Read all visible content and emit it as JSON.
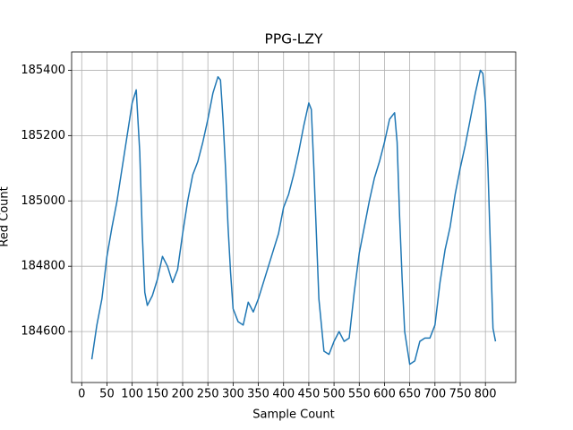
{
  "chart_data": {
    "type": "line",
    "title": "PPG-LZY",
    "x_label": "Sample Count",
    "y_label": "Red Count",
    "x": [
      20,
      30,
      40,
      50,
      60,
      70,
      80,
      90,
      100,
      108,
      115,
      120,
      125,
      130,
      140,
      150,
      160,
      170,
      180,
      190,
      200,
      210,
      220,
      230,
      240,
      250,
      260,
      270,
      275,
      280,
      285,
      290,
      295,
      300,
      310,
      320,
      330,
      340,
      350,
      360,
      370,
      380,
      390,
      400,
      410,
      420,
      430,
      440,
      450,
      455,
      460,
      465,
      470,
      480,
      490,
      500,
      510,
      520,
      530,
      540,
      550,
      560,
      570,
      580,
      590,
      600,
      610,
      620,
      625,
      630,
      635,
      640,
      650,
      660,
      670,
      680,
      690,
      700,
      710,
      720,
      730,
      740,
      750,
      760,
      770,
      780,
      790,
      795,
      800,
      805,
      810,
      815,
      820
    ],
    "series": [
      {
        "name": "Red Count",
        "color": "#1f77b4",
        "values": [
          184515,
          184620,
          184700,
          184830,
          184920,
          185000,
          185100,
          185200,
          185300,
          185340,
          185150,
          184900,
          184720,
          184680,
          184710,
          184760,
          184830,
          184800,
          184750,
          184790,
          184900,
          185000,
          185080,
          185120,
          185180,
          185250,
          185330,
          185380,
          185370,
          185250,
          185100,
          184920,
          184780,
          184670,
          184630,
          184620,
          184690,
          184660,
          184700,
          184750,
          184800,
          184850,
          184900,
          184980,
          185020,
          185080,
          185150,
          185230,
          185300,
          185280,
          185100,
          184900,
          184700,
          184540,
          184530,
          184570,
          184600,
          184570,
          184580,
          184720,
          184840,
          184920,
          185000,
          185070,
          185120,
          185180,
          185250,
          185270,
          185180,
          184950,
          184760,
          184600,
          184500,
          184510,
          184570,
          184580,
          184580,
          184620,
          184750,
          184850,
          184920,
          185020,
          185100,
          185170,
          185250,
          185330,
          185400,
          185390,
          185300,
          185100,
          184850,
          184610,
          184570
        ]
      }
    ],
    "xlim": [
      -20,
      860
    ],
    "ylim": [
      184444,
      185456
    ],
    "xticks": [
      0,
      50,
      100,
      150,
      200,
      250,
      300,
      350,
      400,
      450,
      500,
      550,
      600,
      650,
      700,
      750,
      800
    ],
    "yticks": [
      184600,
      184800,
      185000,
      185200,
      185400
    ],
    "grid": true
  }
}
